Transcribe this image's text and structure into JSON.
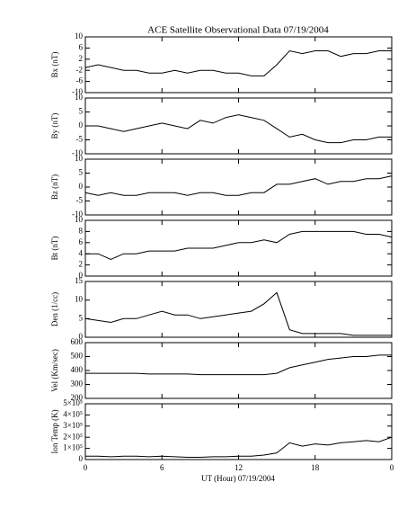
{
  "chart_data": {
    "type": "line",
    "title": "ACE Satellite Observational Data   07/19/2004",
    "xlabel": "UT (Hour)   07/19/2004",
    "x": [
      0,
      1,
      2,
      3,
      4,
      5,
      6,
      7,
      8,
      9,
      10,
      11,
      12,
      13,
      14,
      15,
      16,
      17,
      18,
      19,
      20,
      21,
      22,
      23,
      24
    ],
    "xlim": [
      0,
      24
    ],
    "xticks": [
      0,
      6,
      12,
      18,
      {
        "value": 24,
        "label": "0"
      }
    ],
    "color": "#000000",
    "panels": [
      {
        "ylabel": "Bx (nT)",
        "ylim": [
          -10,
          10
        ],
        "yticks": [
          -10,
          -6,
          -2,
          2,
          6,
          10
        ],
        "values": [
          -1,
          0,
          -1,
          -2,
          -2,
          -3,
          -3,
          -2,
          -3,
          -2,
          -2,
          -3,
          -3,
          -4,
          -4,
          0,
          5,
          4,
          5,
          5,
          3,
          4,
          4,
          5,
          5
        ]
      },
      {
        "ylabel": "By (nT)",
        "ylim": [
          -10,
          10
        ],
        "yticks": [
          -10,
          -5,
          0,
          5,
          10
        ],
        "values": [
          0,
          0,
          -1,
          -2,
          -1,
          0,
          1,
          0,
          -1,
          2,
          1,
          3,
          4,
          3,
          2,
          -1,
          -4,
          -3,
          -5,
          -6,
          -6,
          -5,
          -5,
          -4,
          -4
        ]
      },
      {
        "ylabel": "Bz (nT)",
        "ylim": [
          -10,
          10
        ],
        "yticks": [
          -10,
          -5,
          0,
          5,
          10
        ],
        "values": [
          -2,
          -3,
          -2,
          -3,
          -3,
          -2,
          -2,
          -2,
          -3,
          -2,
          -2,
          -3,
          -3,
          -2,
          -2,
          1,
          1,
          2,
          3,
          1,
          2,
          2,
          3,
          3,
          4
        ]
      },
      {
        "ylabel": "Bt (nT)",
        "ylim": [
          0,
          10
        ],
        "yticks": [
          0,
          2,
          4,
          6,
          8,
          10
        ],
        "values": [
          4,
          4,
          3,
          4,
          4,
          4.5,
          4.5,
          4.5,
          5,
          5,
          5,
          5.5,
          6,
          6,
          6.5,
          6,
          7.5,
          8,
          8,
          8,
          8,
          8,
          7.5,
          7.5,
          7
        ]
      },
      {
        "ylabel": "Den (1/cc)",
        "ylim": [
          0,
          15
        ],
        "yticks": [
          0,
          5,
          10,
          15
        ],
        "values": [
          5,
          4.5,
          4,
          5,
          5,
          6,
          7,
          6,
          6,
          5,
          5.5,
          6,
          6.5,
          7,
          9,
          12,
          2,
          1,
          1,
          1,
          1,
          0.5,
          0.5,
          0.5,
          0.5
        ]
      },
      {
        "ylabel": "Vel (Km/sec)",
        "ylim": [
          200,
          600
        ],
        "yticks": [
          200,
          300,
          400,
          500,
          600
        ],
        "values": [
          380,
          380,
          380,
          380,
          380,
          375,
          375,
          375,
          375,
          370,
          370,
          370,
          370,
          370,
          370,
          380,
          420,
          440,
          460,
          480,
          490,
          500,
          500,
          510,
          510
        ]
      },
      {
        "ylabel": "Ion Temp (K)",
        "ylim": [
          0,
          500000
        ],
        "yticks": [
          0,
          {
            "value": 100000,
            "label": "1×10⁵"
          },
          {
            "value": 200000,
            "label": "2×10⁵"
          },
          {
            "value": 300000,
            "label": "3×10⁵"
          },
          {
            "value": 400000,
            "label": "4×10⁵"
          },
          {
            "value": 500000,
            "label": "5×10⁵"
          }
        ],
        "values": [
          30000,
          30000,
          25000,
          30000,
          30000,
          25000,
          30000,
          25000,
          20000,
          20000,
          25000,
          25000,
          30000,
          30000,
          40000,
          60000,
          150000,
          120000,
          140000,
          130000,
          150000,
          160000,
          170000,
          160000,
          200000
        ]
      }
    ]
  }
}
